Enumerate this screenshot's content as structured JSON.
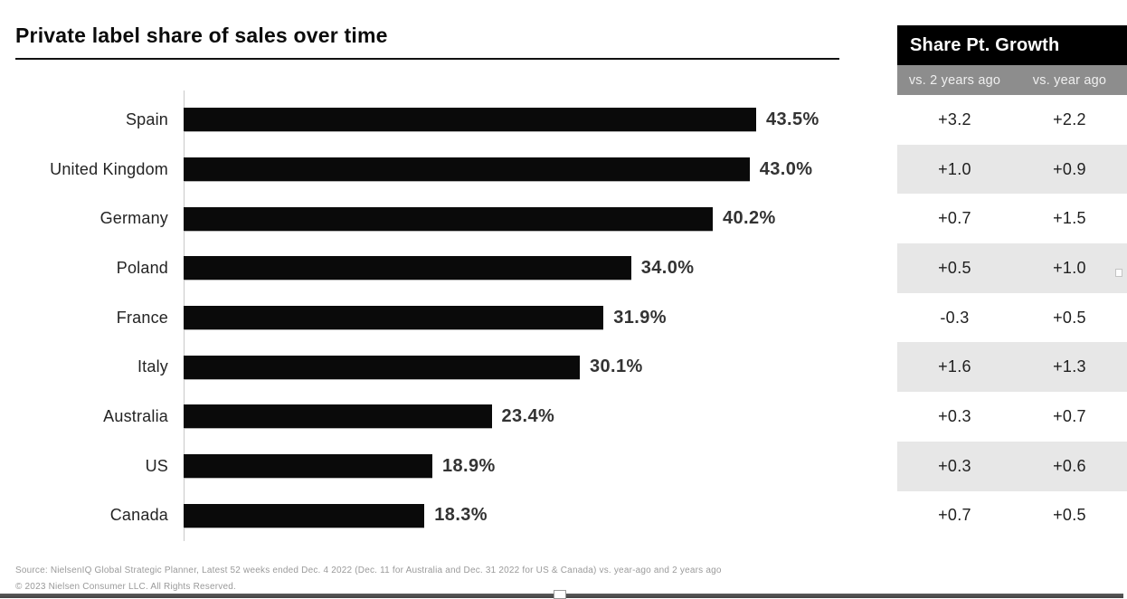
{
  "title": "Private label share of sales over time",
  "chart_data": {
    "type": "bar",
    "orientation": "horizontal",
    "title": "Private label share of sales over time",
    "categories": [
      "Spain",
      "United Kingdom",
      "Germany",
      "Poland",
      "France",
      "Italy",
      "Australia",
      "US",
      "Canada"
    ],
    "values": [
      43.5,
      43.0,
      40.2,
      34.0,
      31.9,
      30.1,
      23.4,
      18.9,
      18.3
    ],
    "value_labels": [
      "43.5%",
      "43.0%",
      "40.2%",
      "34.0%",
      "31.9%",
      "30.1%",
      "23.4%",
      "18.9%",
      "18.3%"
    ],
    "xlabel": "",
    "ylabel": "",
    "xlim": [
      0,
      45
    ],
    "grid": false,
    "legend": false,
    "bar_color": "#0a0a0a"
  },
  "growth_table": {
    "title": "Share Pt. Growth",
    "columns": [
      "vs. 2 years ago",
      "vs. year ago"
    ],
    "rows": [
      [
        "+3.2",
        "+2.2"
      ],
      [
        "+1.0",
        "+0.9"
      ],
      [
        "+0.7",
        "+1.5"
      ],
      [
        "+0.5",
        "+1.0"
      ],
      [
        "-0.3",
        "+0.5"
      ],
      [
        "+1.6",
        "+1.3"
      ],
      [
        "+0.3",
        "+0.7"
      ],
      [
        "+0.3",
        "+0.6"
      ],
      [
        "+0.7",
        "+0.5"
      ]
    ],
    "header_bg": "#000000",
    "subheader_bg": "#8d8d8d",
    "zebra_bg": "#e7e7e7"
  },
  "footer": {
    "source_line": "Source: NielsenIQ Global Strategic Planner, Latest 52 weeks ended Dec. 4 2022 (Dec. 11 for Australia and Dec. 31 2022 for US & Canada) vs. year-ago and 2 years ago",
    "copyright_line": "© 2023 Nielsen Consumer LLC. All Rights Reserved."
  }
}
